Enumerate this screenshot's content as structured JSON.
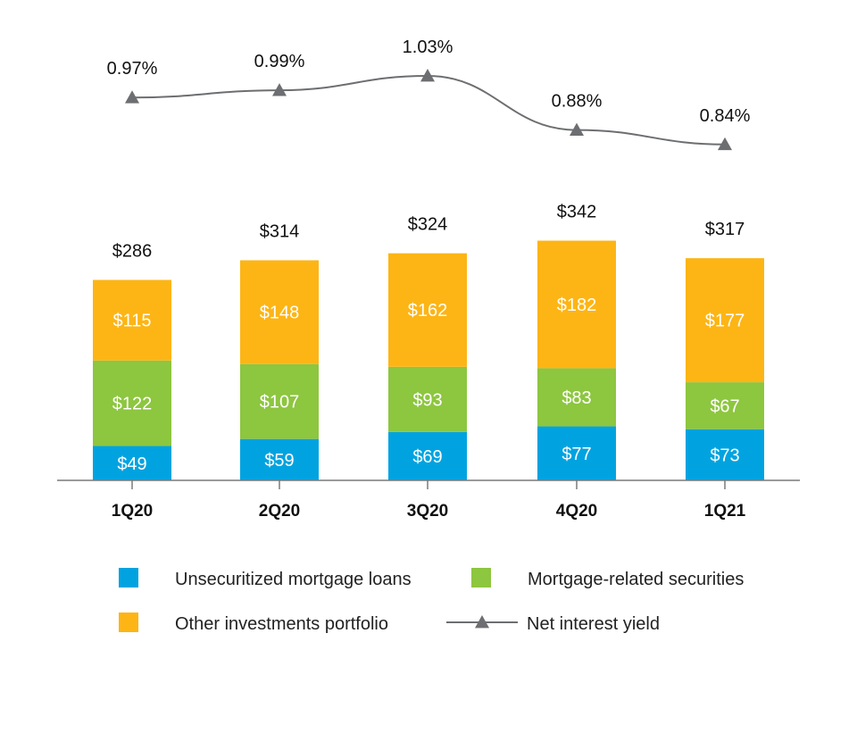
{
  "chart_data": {
    "type": "bar",
    "stacked": true,
    "categories": [
      "1Q20",
      "2Q20",
      "3Q20",
      "4Q20",
      "1Q21"
    ],
    "series": [
      {
        "name": "Unsecuritized mortgage loans",
        "values": [
          49,
          59,
          69,
          77,
          73
        ],
        "labels": [
          "$49",
          "$59",
          "$69",
          "$77",
          "$73"
        ],
        "color": "#00A3E0"
      },
      {
        "name": "Mortgage-related securities",
        "values": [
          122,
          107,
          93,
          83,
          67
        ],
        "labels": [
          "$122",
          "$107",
          "$93",
          "$83",
          "$67"
        ],
        "color": "#8DC63F"
      },
      {
        "name": "Other investments portfolio",
        "values": [
          115,
          148,
          162,
          182,
          177
        ],
        "labels": [
          "$115",
          "$148",
          "$162",
          "$182",
          "$177"
        ],
        "color": "#FDB515"
      }
    ],
    "totals": [
      286,
      314,
      324,
      342,
      317
    ],
    "total_labels": [
      "$286",
      "$314",
      "$324",
      "$342",
      "$317"
    ],
    "line_series": {
      "name": "Net interest yield",
      "values": [
        0.97,
        0.99,
        1.03,
        0.88,
        0.84
      ],
      "labels": [
        "0.97%",
        "0.99%",
        "1.03%",
        "0.88%",
        "0.84%"
      ],
      "color": "#6D6E71",
      "marker": "triangle"
    },
    "legend": {
      "position": "bottom",
      "items": [
        {
          "label": "Unsecuritized mortgage loans",
          "kind": "swatch",
          "color": "#00A3E0"
        },
        {
          "label": "Mortgage-related securities",
          "kind": "swatch",
          "color": "#8DC63F"
        },
        {
          "label": "Other investments portfolio",
          "kind": "swatch",
          "color": "#FDB515"
        },
        {
          "label": "Net interest yield",
          "kind": "line-marker",
          "color": "#6D6E71"
        }
      ]
    },
    "grid": false,
    "title": "",
    "xlabel": "",
    "ylabel": ""
  }
}
